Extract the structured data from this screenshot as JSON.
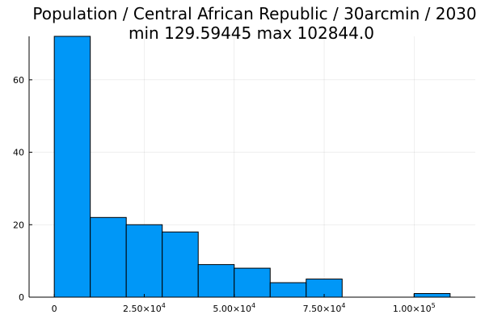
{
  "chart_data": {
    "type": "bar",
    "title_line1": "Population / Central African Republic / 30arcmin / 2030",
    "title_line2": "min 129.59445  max 102844.0",
    "xlabel": "",
    "ylabel": "",
    "bar_color": "#0097f7",
    "grid": true,
    "legend": "none",
    "xlim": [
      -7000,
      117000
    ],
    "ylim": [
      0,
      72
    ],
    "x_ticks": [
      {
        "value": 0,
        "mantissa": "0",
        "exponent": ""
      },
      {
        "value": 25000,
        "mantissa": "2.50×10",
        "exponent": "4"
      },
      {
        "value": 50000,
        "mantissa": "5.00×10",
        "exponent": "4"
      },
      {
        "value": 75000,
        "mantissa": "7.50×10",
        "exponent": "4"
      },
      {
        "value": 100000,
        "mantissa": "1.00×10",
        "exponent": "5"
      }
    ],
    "y_ticks": [
      {
        "value": 0,
        "label": "0"
      },
      {
        "value": 20,
        "label": "20"
      },
      {
        "value": 40,
        "label": "40"
      },
      {
        "value": 60,
        "label": "60"
      }
    ],
    "bins": [
      {
        "start": 0,
        "end": 10000,
        "count": 72
      },
      {
        "start": 10000,
        "end": 20000,
        "count": 22
      },
      {
        "start": 20000,
        "end": 30000,
        "count": 20
      },
      {
        "start": 30000,
        "end": 40000,
        "count": 18
      },
      {
        "start": 40000,
        "end": 50000,
        "count": 9
      },
      {
        "start": 50000,
        "end": 60000,
        "count": 8
      },
      {
        "start": 60000,
        "end": 70000,
        "count": 4
      },
      {
        "start": 70000,
        "end": 80000,
        "count": 5
      },
      {
        "start": 80000,
        "end": 90000,
        "count": 0
      },
      {
        "start": 90000,
        "end": 100000,
        "count": 0
      },
      {
        "start": 100000,
        "end": 110000,
        "count": 1
      }
    ]
  }
}
